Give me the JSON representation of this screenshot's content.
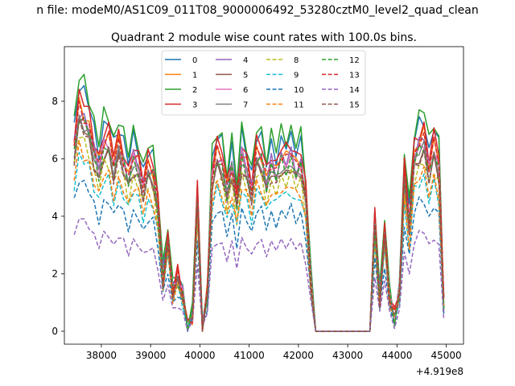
{
  "chart_data": {
    "type": "line",
    "figure_title": "n file: modeM0/AS1C09_011T08_9000006492_53280cztM0_level2_quad_clean",
    "title": "Quadrant 2 module wise count rates with 100.0s bins.",
    "xlabel": "",
    "ylabel": "",
    "x_offset_label": "+4.919e8",
    "xlim": [
      37250,
      45350
    ],
    "ylim": [
      -0.45,
      9.9
    ],
    "x_ticks": [
      38000,
      39000,
      40000,
      41000,
      42000,
      43000,
      44000,
      45000
    ],
    "x_tick_labels": [
      "38000",
      "39000",
      "40000",
      "41000",
      "42000",
      "43000",
      "44000",
      "45000"
    ],
    "y_ticks": [
      0,
      2,
      4,
      6,
      8
    ],
    "y_tick_labels": [
      "0",
      "2",
      "4",
      "6",
      "8"
    ],
    "grid": false,
    "legend": {
      "placement": "top-center",
      "columns": 4
    },
    "x": [
      37450,
      37550,
      37650,
      37750,
      37850,
      37950,
      38050,
      38150,
      38250,
      38350,
      38450,
      38550,
      38650,
      38750,
      38850,
      38950,
      39050,
      39150,
      39250,
      39350,
      39450,
      39550,
      39650,
      39750,
      39850,
      39950,
      40050,
      40150,
      40250,
      40350,
      40450,
      40550,
      40650,
      40750,
      40850,
      40950,
      41050,
      41150,
      41250,
      41350,
      41450,
      41550,
      41650,
      41750,
      41850,
      41950,
      42050,
      42150,
      42250,
      42350,
      42450,
      42550,
      42650,
      42750,
      42850,
      42950,
      43050,
      43150,
      43250,
      43350,
      43450,
      43550,
      43650,
      43750,
      43850,
      43950,
      44050,
      44150,
      44250,
      44350,
      44450,
      44550,
      44650,
      44750,
      44850,
      44950
    ],
    "series": [
      {
        "name": "0",
        "color": "#1f77b4",
        "style": "solid",
        "scale": 1.03
      },
      {
        "name": "1",
        "color": "#ff7f0e",
        "style": "solid",
        "scale": 0.95
      },
      {
        "name": "2",
        "color": "#2ca02c",
        "style": "solid",
        "scale": 1.07
      },
      {
        "name": "3",
        "color": "#d62728",
        "style": "solid",
        "scale": 0.99
      },
      {
        "name": "4",
        "color": "#9467bd",
        "style": "solid",
        "scale": 0.93
      },
      {
        "name": "5",
        "color": "#8c564b",
        "style": "solid",
        "scale": 0.87
      },
      {
        "name": "6",
        "color": "#e377c2",
        "style": "solid",
        "scale": 0.91
      },
      {
        "name": "7",
        "color": "#7f7f7f",
        "style": "solid",
        "scale": 0.89
      },
      {
        "name": "8",
        "color": "#bcbd22",
        "style": "dashed",
        "scale": 0.82
      },
      {
        "name": "9",
        "color": "#17becf",
        "style": "dashed",
        "scale": 0.74
      },
      {
        "name": "10",
        "color": "#1f77b4",
        "style": "dashed",
        "scale": 0.64
      },
      {
        "name": "11",
        "color": "#ff7f0e",
        "style": "dashed",
        "scale": 0.77
      },
      {
        "name": "12",
        "color": "#2ca02c",
        "style": "dashed",
        "scale": 0.9
      },
      {
        "name": "13",
        "color": "#d62728",
        "style": "dashed",
        "scale": 0.94
      },
      {
        "name": "14",
        "color": "#9467bd",
        "style": "dashed",
        "scale": 0.48
      },
      {
        "name": "15",
        "color": "#8c564b",
        "style": "dashed",
        "scale": 0.86
      }
    ],
    "base_profile": [
      6.9,
      8.3,
      8.0,
      7.6,
      6.8,
      6.1,
      7.0,
      7.1,
      6.2,
      6.9,
      6.4,
      5.7,
      6.5,
      6.2,
      5.4,
      6.1,
      5.9,
      4.6,
      2.0,
      3.4,
      1.5,
      2.0,
      1.4,
      0.2,
      0.6,
      5.0,
      0.1,
      1.4,
      5.8,
      6.6,
      6.3,
      5.2,
      6.2,
      4.8,
      6.6,
      6.1,
      5.3,
      6.6,
      6.5,
      5.6,
      6.3,
      5.9,
      6.5,
      6.3,
      6.6,
      6.1,
      6.3,
      5.0,
      2.0,
      0.0,
      0.0,
      0.0,
      0.0,
      0.0,
      0.0,
      0.0,
      0.0,
      0.0,
      0.0,
      0.0,
      0.0,
      4.1,
      1.2,
      3.7,
      1.3,
      0.5,
      1.5,
      5.9,
      4.0,
      6.5,
      7.0,
      7.2,
      6.1,
      6.9,
      6.2,
      1.0
    ],
    "variation": [
      0.15,
      -0.2,
      0.3,
      -0.1,
      0.25,
      -0.3,
      0.1,
      -0.15,
      0.35,
      -0.25,
      0.2,
      -0.1,
      0.3,
      -0.3,
      0.15,
      -0.2,
      0.25,
      -0.05,
      0.2,
      -0.3,
      0.1,
      -0.15
    ]
  }
}
